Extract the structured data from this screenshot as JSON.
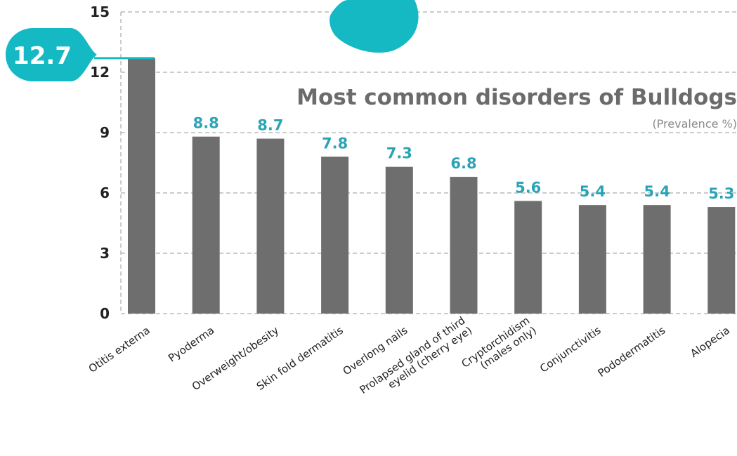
{
  "chart_data": {
    "type": "bar",
    "title": "Most common disorders of Bulldogs",
    "subtitle": "(Prevalence %)",
    "categories": [
      "Otitis externa",
      "Pyoderma",
      "Overweight/obesity",
      "Skin fold dermatitis",
      "Overlong nails",
      "Prolapsed gland of third eyelid (cherry eye)",
      "Cryptorchidism (males only)",
      "Conjunctivitis",
      "Pododermatitis",
      "Alopecia"
    ],
    "category_lines": [
      [
        "Otitis externa"
      ],
      [
        "Pyoderma"
      ],
      [
        "Overweight/obesity"
      ],
      [
        "Skin fold dermatitis"
      ],
      [
        "Overlong nails"
      ],
      [
        "Prolapsed gland of third",
        "eyelid (cherry eye)"
      ],
      [
        "Cryptorchidism",
        "(males only)"
      ],
      [
        "Conjunctivitis"
      ],
      [
        "Pododermatitis"
      ],
      [
        "Alopecia"
      ]
    ],
    "values": [
      12.7,
      8.8,
      8.7,
      7.8,
      7.3,
      6.8,
      5.6,
      5.4,
      5.4,
      5.3
    ],
    "data_labels": [
      "12.7",
      "8.8",
      "8.7",
      "7.8",
      "7.3",
      "6.8",
      "5.6",
      "5.4",
      "5.4",
      "5.3"
    ],
    "ylim": [
      0,
      15
    ],
    "yticks": [
      "0",
      "3",
      "6",
      "9",
      "12",
      "15"
    ],
    "grid": true,
    "xlabel": "",
    "ylabel": "",
    "colors": {
      "bar": "#6e6e6e",
      "accent": "#14b9c4",
      "label": "#2aa4b5",
      "title": "#6b6b6b",
      "grid": "#999999",
      "text": "#222222"
    }
  }
}
